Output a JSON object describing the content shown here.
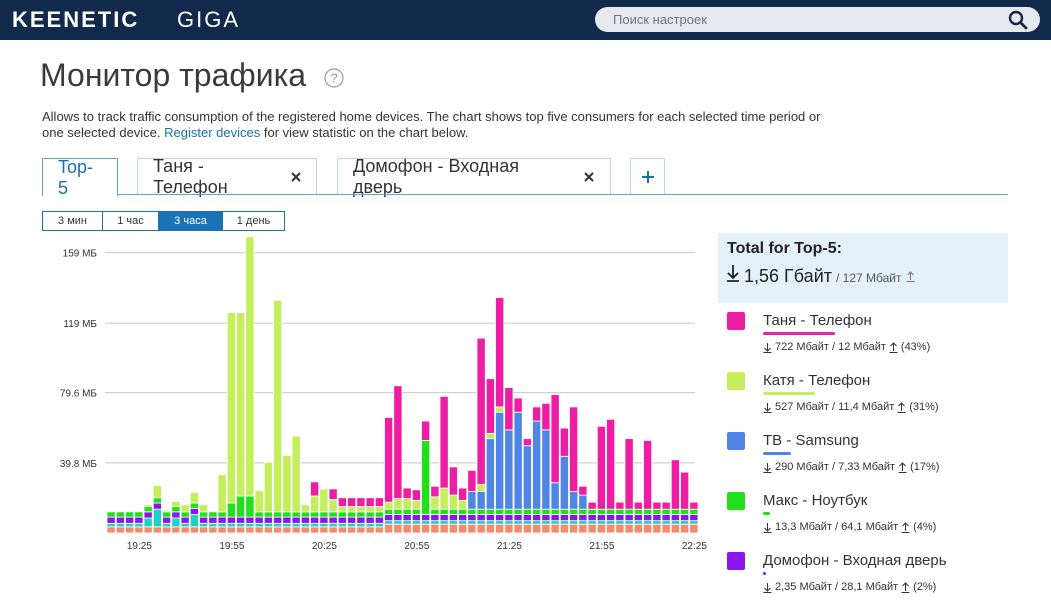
{
  "header": {
    "logo": "KEENETIC",
    "model": "GIGA",
    "search_placeholder": "Поиск настроек"
  },
  "page": {
    "title": "Монитор трафика",
    "help": "?",
    "description": "Allows to track traffic consumption of the registered home devices. The chart shows top five consumers for each selected time period or one selected device.",
    "link": "Register devices",
    "description_end": "for view statistic on the chart below."
  },
  "tabs": [
    "Top-5",
    "Таня - Телефон",
    "Домофон - Входная дверь"
  ],
  "periods": [
    "3 мин",
    "1 час",
    "3 часа",
    "1 день"
  ],
  "active_period": 2,
  "total": {
    "title": "Total for Top-5:",
    "download": "1,56 Гбайт",
    "upload": "/ 127 Мбайт"
  },
  "chart_data": {
    "type": "bar",
    "stacked": true,
    "grid": true,
    "categories": [
      null,
      null,
      null,
      "19:25",
      null,
      null,
      null,
      null,
      null,
      null,
      null,
      null,
      null,
      "19:55",
      null,
      null,
      null,
      null,
      null,
      null,
      null,
      null,
      null,
      "20:25",
      null,
      null,
      null,
      null,
      null,
      null,
      null,
      null,
      null,
      "20:55",
      null,
      null,
      null,
      null,
      null,
      null,
      null,
      null,
      null,
      "21:25",
      null,
      null,
      null,
      null,
      null,
      null,
      null,
      null,
      null,
      "21:55",
      null,
      null,
      null,
      null,
      null,
      null,
      null,
      null,
      null,
      "22:25"
    ],
    "ylim": [
      0,
      169
    ],
    "yticks": [
      {
        "value": 39.8,
        "label": "39.8 МБ"
      },
      {
        "value": 79.6,
        "label": "79.6 МБ"
      },
      {
        "value": 119,
        "label": "119 МБ"
      },
      {
        "value": 159,
        "label": "159 МБ"
      }
    ],
    "series": [
      {
        "color": "#f28c6c",
        "values": [
          3.5,
          3.5,
          3.5,
          3.5,
          3.5,
          3.5,
          3.5,
          3.5,
          3.5,
          3.5,
          3.5,
          3.5,
          3.5,
          3.5,
          3.5,
          3.5,
          3.5,
          3.5,
          3.5,
          3.5,
          3.5,
          3.5,
          3.5,
          3.5,
          3.5,
          3.5,
          3.5,
          3.5,
          3.5,
          3.5,
          5,
          5,
          5,
          5,
          5,
          5,
          5,
          5,
          5,
          5,
          5,
          5,
          5,
          5,
          5,
          5,
          5,
          5,
          5,
          5,
          5,
          5,
          5,
          5,
          5,
          5,
          5,
          5,
          5,
          5,
          5,
          5,
          5,
          5
        ]
      },
      {
        "color": "#1fd1c8",
        "values": [
          2,
          2,
          2,
          2,
          5,
          10,
          2,
          5,
          2,
          7,
          2,
          2,
          2,
          2,
          2,
          2,
          2,
          2,
          2,
          2,
          2,
          2,
          2,
          2,
          2,
          2,
          2,
          2,
          2,
          2,
          2,
          2,
          2,
          2,
          2,
          2,
          2,
          2,
          2,
          2,
          2,
          2,
          2,
          2,
          2,
          2,
          2,
          2,
          2,
          2,
          2,
          2,
          2,
          2,
          2,
          2,
          2,
          2,
          2,
          2,
          2,
          2,
          2,
          2
        ]
      },
      {
        "name": "Домофон - Входная дверь",
        "color": "#8a16ec",
        "traffic": "2,35 Мбайт / 28,1 Мбайт",
        "share": 2,
        "share_label": "(2%)",
        "values": [
          3.5,
          3.5,
          3.5,
          3.5,
          3.5,
          3.5,
          3.5,
          3.5,
          3.5,
          3.5,
          3.5,
          3.5,
          3.5,
          3.5,
          3.5,
          3.5,
          3.5,
          3.5,
          3.5,
          3.5,
          3.5,
          3.5,
          3.5,
          3.5,
          3.5,
          3.5,
          3.5,
          3.5,
          3.5,
          3.5,
          3.5,
          3.5,
          3.5,
          3.5,
          3.5,
          3.5,
          3.5,
          3.5,
          3.5,
          3.5,
          3.5,
          3.5,
          3.5,
          3.5,
          3.5,
          3.5,
          3.5,
          3.5,
          3.5,
          3.5,
          3.5,
          3.5,
          3.5,
          3.5,
          3.5,
          3.5,
          3.5,
          3.5,
          3.5,
          3.5,
          3.5,
          3.5,
          3.5,
          3.5
        ]
      },
      {
        "name": "Макс - Ноутбук",
        "color": "#22df1c",
        "traffic": "13,3 Мбайт / 64,1 Мбайт",
        "share": 4,
        "share_label": "(4%)",
        "values": [
          3,
          3,
          3,
          3,
          3,
          3,
          3,
          3,
          3,
          3,
          3,
          3,
          3,
          8,
          12,
          12,
          3,
          3,
          3,
          3,
          3,
          3,
          3,
          3,
          3,
          3,
          3,
          3,
          3,
          3,
          3,
          3,
          3,
          3,
          42,
          3,
          3,
          3,
          3,
          3,
          3,
          3,
          3,
          3,
          3,
          3,
          3,
          3,
          3,
          3,
          3,
          3,
          3,
          3,
          3,
          3,
          3,
          3,
          3,
          3,
          3,
          3,
          3,
          3
        ]
      },
      {
        "name": "ТВ - Samsung",
        "color": "#4f86e6",
        "traffic": "290 Мбайт / 7,33 Мбайт",
        "share": 17,
        "share_label": "(17%)",
        "values": [
          0,
          0,
          0,
          0,
          0,
          0,
          0,
          0,
          0,
          0,
          0,
          0,
          0,
          0,
          0,
          0,
          0,
          0,
          0,
          0,
          0,
          0,
          0,
          0,
          0,
          0,
          0,
          0,
          0,
          0,
          0,
          0,
          0,
          0,
          0,
          0,
          0,
          0,
          0,
          10,
          10,
          40,
          55,
          45,
          55,
          36,
          50,
          45,
          15,
          30,
          10,
          8,
          0,
          0,
          0,
          0,
          0,
          0,
          0,
          0,
          0,
          0,
          0,
          0
        ]
      },
      {
        "name": "Катя - Телефон",
        "color": "#c4ee5c",
        "traffic": "527 Мбайт / 11,4 Мбайт",
        "share": 31,
        "share_label": "(31%)",
        "values": [
          0,
          0,
          0,
          0,
          1,
          7,
          1,
          3,
          4,
          6,
          4,
          0,
          21,
          108,
          104,
          147,
          12,
          28,
          120,
          32,
          43,
          4,
          9,
          13,
          7,
          3,
          3,
          3,
          3,
          3,
          4,
          6,
          6,
          5,
          0,
          7,
          12,
          8,
          5,
          0,
          4,
          3,
          3,
          0,
          0,
          0,
          0,
          0,
          0,
          0,
          0,
          0,
          0,
          0,
          0,
          0,
          0,
          0,
          0,
          0,
          0,
          0,
          0,
          0
        ]
      },
      {
        "name": "Таня - Телефон",
        "color": "#ee1ea4",
        "traffic": "722 Мбайт / 12 Мбайт",
        "share": 43,
        "share_label": "(43%)",
        "values": [
          0,
          0,
          0,
          0,
          0,
          0,
          0,
          0,
          0,
          0,
          0,
          0,
          0,
          0,
          0,
          0,
          0,
          0,
          0,
          0,
          0,
          0,
          8,
          0,
          6,
          5,
          5,
          5,
          5,
          5,
          48,
          64,
          6,
          6,
          11,
          6,
          52,
          16,
          7,
          12,
          83,
          31,
          62,
          24,
          8,
          4,
          8,
          15,
          50,
          16,
          48,
          5,
          4,
          47,
          51,
          4,
          40,
          4,
          39,
          4,
          4,
          28,
          21,
          4
        ]
      }
    ]
  }
}
